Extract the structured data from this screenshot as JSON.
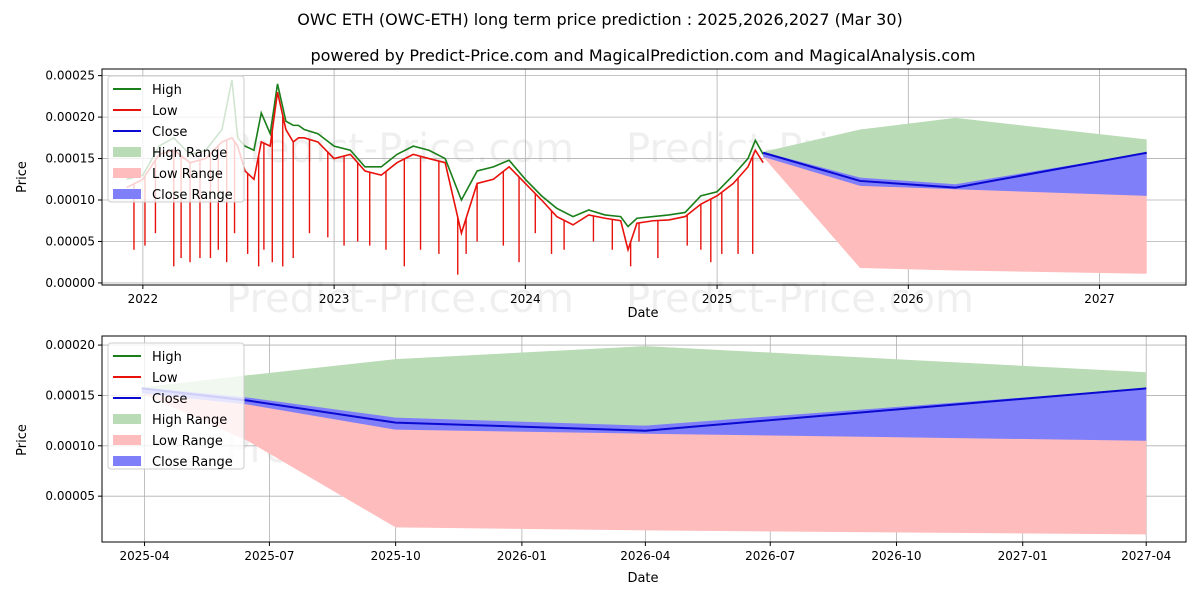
{
  "figure": {
    "title": "OWC ETH (OWC-ETH) long term price prediction : 2025,2026,2027 (Mar 30)",
    "subtitle": "powered by Predict-Price.com and MagicalPrediction.com and MagicalAnalysis.com",
    "watermark": "Predict-Price.com"
  },
  "colors": {
    "high": "#1a7f1a",
    "low": "#e8120c",
    "close": "#0a0ad0",
    "high_range": "#b9dbb5",
    "low_range": "#ffbcbc",
    "close_range": "#7f7ffa"
  },
  "chart_data": [
    {
      "type": "line",
      "xlabel": "Date",
      "ylabel": "Price",
      "xlim": [
        "2021-10-15",
        "2027-06-15"
      ],
      "ylim": [
        -2.5e-06,
        0.000258
      ],
      "grid": true,
      "legend_position": "top-left",
      "x_ticks": [
        {
          "value": "2022-01-01",
          "label": "2022"
        },
        {
          "value": "2023-01-01",
          "label": "2023"
        },
        {
          "value": "2024-01-01",
          "label": "2024"
        },
        {
          "value": "2025-01-01",
          "label": "2025"
        },
        {
          "value": "2026-01-01",
          "label": "2026"
        },
        {
          "value": "2027-01-01",
          "label": "2027"
        }
      ],
      "y_ticks": [
        {
          "value": 0,
          "label": "0.00000"
        },
        {
          "value": 5e-05,
          "label": "0.00005"
        },
        {
          "value": 0.0001,
          "label": "0.00010"
        },
        {
          "value": 0.00015,
          "label": "0.00015"
        },
        {
          "value": 0.0002,
          "label": "0.00020"
        },
        {
          "value": 0.00025,
          "label": "0.00025"
        }
      ],
      "legend": [
        {
          "key": "high",
          "label": "High",
          "kind": "line"
        },
        {
          "key": "low",
          "label": "Low",
          "kind": "line"
        },
        {
          "key": "close",
          "label": "Close",
          "kind": "line"
        },
        {
          "key": "high_range",
          "label": "High Range",
          "kind": "patch"
        },
        {
          "key": "low_range",
          "label": "Low Range",
          "kind": "patch"
        },
        {
          "key": "close_range",
          "label": "Close Range",
          "kind": "patch"
        }
      ],
      "history": {
        "dates": [
          "2021-12-01",
          "2022-01-01",
          "2022-02-01",
          "2022-03-01",
          "2022-04-01",
          "2022-05-01",
          "2022-06-01",
          "2022-06-20",
          "2022-07-01",
          "2022-07-15",
          "2022-08-01",
          "2022-08-15",
          "2022-09-01",
          "2022-09-15",
          "2022-10-01",
          "2022-10-15",
          "2022-10-25",
          "2022-11-05",
          "2022-12-01",
          "2023-01-01",
          "2023-02-01",
          "2023-03-01",
          "2023-04-01",
          "2023-05-01",
          "2023-06-01",
          "2023-07-01",
          "2023-08-01",
          "2023-09-01",
          "2023-10-01",
          "2023-11-01",
          "2023-12-01",
          "2024-01-01",
          "2024-02-01",
          "2024-03-01",
          "2024-04-01",
          "2024-05-01",
          "2024-06-01",
          "2024-07-01",
          "2024-07-15",
          "2024-08-01",
          "2024-09-01",
          "2024-10-01",
          "2024-11-01",
          "2024-12-01",
          "2025-01-01",
          "2025-02-01",
          "2025-03-01",
          "2025-03-15",
          "2025-03-30"
        ],
        "high": [
          0.000125,
          0.00013,
          0.000165,
          0.000175,
          0.000155,
          0.00016,
          0.000185,
          0.000245,
          0.000175,
          0.000165,
          0.00016,
          0.000205,
          0.00018,
          0.00024,
          0.000195,
          0.00019,
          0.00019,
          0.000185,
          0.00018,
          0.000165,
          0.00016,
          0.00014,
          0.00014,
          0.000155,
          0.000165,
          0.00016,
          0.00015,
          0.0001,
          0.000135,
          0.00014,
          0.000148,
          0.000125,
          0.000105,
          9e-05,
          8e-05,
          8.8e-05,
          8.2e-05,
          8e-05,
          6.8e-05,
          7.8e-05,
          8e-05,
          8.2e-05,
          8.5e-05,
          0.000105,
          0.00011,
          0.00013,
          0.00015,
          0.000172,
          0.000155
        ],
        "low": [
          0.000115,
          0.000125,
          0.000155,
          0.00016,
          0.000145,
          0.00015,
          0.00017,
          0.000175,
          0.000165,
          0.000135,
          0.000125,
          0.00017,
          0.000165,
          0.00023,
          0.000185,
          0.00017,
          0.000175,
          0.000175,
          0.00017,
          0.00015,
          0.000155,
          0.000135,
          0.00013,
          0.000145,
          0.000155,
          0.00015,
          0.000145,
          6e-05,
          0.00012,
          0.000125,
          0.00014,
          0.00012,
          0.0001,
          8e-05,
          7e-05,
          8.2e-05,
          7.8e-05,
          7.5e-05,
          4e-05,
          7.2e-05,
          7.5e-05,
          7.6e-05,
          8e-05,
          9.5e-05,
          0.000105,
          0.00012,
          0.00014,
          0.00016,
          0.000145
        ],
        "spikes": [
          {
            "d": "2021-12-15",
            "v": 4e-05
          },
          {
            "d": "2022-01-05",
            "v": 4.5e-05
          },
          {
            "d": "2022-01-25",
            "v": 6e-05
          },
          {
            "d": "2022-03-01",
            "v": 2e-05
          },
          {
            "d": "2022-03-15",
            "v": 3e-05
          },
          {
            "d": "2022-04-01",
            "v": 2.5e-05
          },
          {
            "d": "2022-04-20",
            "v": 3e-05
          },
          {
            "d": "2022-05-10",
            "v": 3e-05
          },
          {
            "d": "2022-05-25",
            "v": 4e-05
          },
          {
            "d": "2022-06-10",
            "v": 2.5e-05
          },
          {
            "d": "2022-06-25",
            "v": 6e-05
          },
          {
            "d": "2022-07-20",
            "v": 3.5e-05
          },
          {
            "d": "2022-08-10",
            "v": 2e-05
          },
          {
            "d": "2022-08-20",
            "v": 4e-05
          },
          {
            "d": "2022-09-05",
            "v": 2.5e-05
          },
          {
            "d": "2022-09-25",
            "v": 2e-05
          },
          {
            "d": "2022-10-15",
            "v": 3e-05
          },
          {
            "d": "2022-11-15",
            "v": 6e-05
          },
          {
            "d": "2022-12-20",
            "v": 5.5e-05
          },
          {
            "d": "2023-01-20",
            "v": 4.5e-05
          },
          {
            "d": "2023-02-15",
            "v": 5e-05
          },
          {
            "d": "2023-03-10",
            "v": 4.5e-05
          },
          {
            "d": "2023-04-10",
            "v": 4e-05
          },
          {
            "d": "2023-05-15",
            "v": 2e-05
          },
          {
            "d": "2023-06-15",
            "v": 4e-05
          },
          {
            "d": "2023-07-20",
            "v": 3.5e-05
          },
          {
            "d": "2023-08-25",
            "v": 1e-05
          },
          {
            "d": "2023-09-10",
            "v": 3.5e-05
          },
          {
            "d": "2023-10-01",
            "v": 5e-05
          },
          {
            "d": "2023-11-20",
            "v": 4.5e-05
          },
          {
            "d": "2023-12-20",
            "v": 2.5e-05
          },
          {
            "d": "2024-01-20",
            "v": 6e-05
          },
          {
            "d": "2024-02-20",
            "v": 3.5e-05
          },
          {
            "d": "2024-03-15",
            "v": 4e-05
          },
          {
            "d": "2024-05-10",
            "v": 5e-05
          },
          {
            "d": "2024-06-15",
            "v": 4e-05
          },
          {
            "d": "2024-07-20",
            "v": 2e-05
          },
          {
            "d": "2024-08-05",
            "v": 5e-05
          },
          {
            "d": "2024-09-10",
            "v": 3e-05
          },
          {
            "d": "2024-11-05",
            "v": 4.5e-05
          },
          {
            "d": "2024-12-01",
            "v": 4e-05
          },
          {
            "d": "2024-12-20",
            "v": 2.5e-05
          },
          {
            "d": "2025-01-10",
            "v": 3.5e-05
          },
          {
            "d": "2025-02-10",
            "v": 3.5e-05
          },
          {
            "d": "2025-03-10",
            "v": 3.5e-05
          }
        ]
      },
      "forecast": {
        "dates": [
          "2025-03-30",
          "2025-10-01",
          "2026-04-01",
          "2027-04-01"
        ],
        "close": [
          0.000157,
          0.000123,
          0.000115,
          0.000157
        ],
        "high_upper": [
          0.000158,
          0.000185,
          0.000199,
          0.000173
        ],
        "low_lower": [
          0.000152,
          1.8e-05,
          1.5e-05,
          1.1e-05
        ],
        "close_upper": [
          0.000158,
          0.000127,
          0.000119,
          0.000157
        ],
        "close_lower": [
          0.000152,
          0.000117,
          0.000113,
          0.000105
        ]
      }
    },
    {
      "type": "area",
      "xlabel": "Date",
      "ylabel": "Price",
      "xlim": [
        "2025-03-01",
        "2027-04-30"
      ],
      "ylim": [
        4.5e-06,
        0.000209
      ],
      "grid": true,
      "legend_position": "top-left",
      "x_ticks": [
        {
          "value": "2025-04-01",
          "label": "2025-04"
        },
        {
          "value": "2025-07-01",
          "label": "2025-07"
        },
        {
          "value": "2025-10-01",
          "label": "2025-10"
        },
        {
          "value": "2026-01-01",
          "label": "2026-01"
        },
        {
          "value": "2026-04-01",
          "label": "2026-04"
        },
        {
          "value": "2026-07-01",
          "label": "2026-07"
        },
        {
          "value": "2026-10-01",
          "label": "2026-10"
        },
        {
          "value": "2027-01-01",
          "label": "2027-01"
        },
        {
          "value": "2027-04-01",
          "label": "2027-04"
        }
      ],
      "y_ticks": [
        {
          "value": 5e-05,
          "label": "0.00005"
        },
        {
          "value": 0.0001,
          "label": "0.00010"
        },
        {
          "value": 0.00015,
          "label": "0.00015"
        },
        {
          "value": 0.0002,
          "label": "0.00020"
        }
      ],
      "legend": [
        {
          "key": "high",
          "label": "High",
          "kind": "line"
        },
        {
          "key": "low",
          "label": "Low",
          "kind": "line"
        },
        {
          "key": "close",
          "label": "Close",
          "kind": "line"
        },
        {
          "key": "high_range",
          "label": "High Range",
          "kind": "patch"
        },
        {
          "key": "low_range",
          "label": "Low Range",
          "kind": "patch"
        },
        {
          "key": "close_range",
          "label": "Close Range",
          "kind": "patch"
        }
      ],
      "forecast": {
        "dates": [
          "2025-03-30",
          "2025-06-15",
          "2025-10-01",
          "2026-04-01",
          "2027-04-01"
        ],
        "close": [
          0.000157,
          0.000145,
          0.000123,
          0.000115,
          0.000157
        ],
        "high_upper": [
          0.000158,
          0.00017,
          0.000186,
          0.000199,
          0.000173
        ],
        "low_lower": [
          0.000152,
          0.000105,
          1.9e-05,
          1.6e-05,
          1.2e-05
        ],
        "close_upper": [
          0.000158,
          0.000148,
          0.000128,
          0.00012,
          0.000157
        ],
        "close_lower": [
          0.000152,
          0.000141,
          0.000116,
          0.000112,
          0.000105
        ]
      }
    }
  ]
}
